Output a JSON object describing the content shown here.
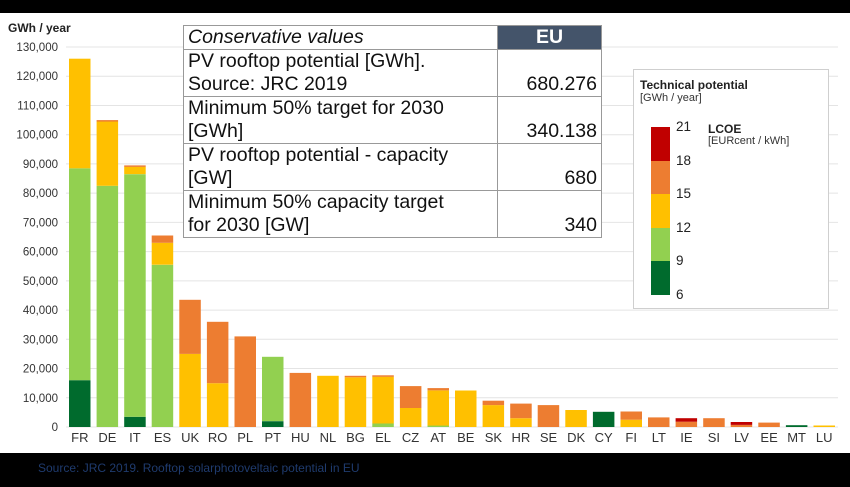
{
  "chart_data": {
    "type": "bar",
    "stacked": true,
    "ylabel": "GWh / year",
    "ylim": [
      0,
      130000
    ],
    "yticks": [
      "0",
      "10,000",
      "20,000",
      "30,000",
      "40,000",
      "50,000",
      "60,000",
      "70,000",
      "80,000",
      "90,000",
      "100,000",
      "110,000",
      "120,000",
      "130,000"
    ],
    "ytick_values": [
      0,
      10000,
      20000,
      30000,
      40000,
      50000,
      60000,
      70000,
      80000,
      90000,
      100000,
      110000,
      120000,
      130000
    ],
    "grid": true,
    "categories": [
      "FR",
      "DE",
      "IT",
      "ES",
      "UK",
      "RO",
      "PL",
      "PT",
      "HU",
      "NL",
      "BG",
      "EL",
      "CZ",
      "AT",
      "BE",
      "SK",
      "HR",
      "SE",
      "DK",
      "CY",
      "FI",
      "LT",
      "IE",
      "SI",
      "LV",
      "EE",
      "MT",
      "LU"
    ],
    "series": [
      {
        "color": "#006b2d",
        "values": [
          16000,
          0,
          3500,
          0,
          0,
          0,
          0,
          2000,
          0,
          0,
          0,
          0,
          0,
          0,
          0,
          0,
          0,
          0,
          0,
          5200,
          0,
          0,
          0,
          0,
          0,
          0,
          600,
          0
        ]
      },
      {
        "color": "#92d050",
        "values": [
          72500,
          82500,
          83000,
          55500,
          0,
          0,
          0,
          22000,
          0,
          0,
          0,
          1200,
          0,
          500,
          0,
          0,
          0,
          0,
          0,
          0,
          0,
          0,
          0,
          0,
          0,
          0,
          0,
          0
        ]
      },
      {
        "color": "#ffc000",
        "values": [
          37500,
          22000,
          2500,
          7500,
          25000,
          15000,
          0,
          0,
          0,
          17500,
          17000,
          16000,
          6500,
          12000,
          12500,
          7500,
          3000,
          0,
          5800,
          0,
          2500,
          0,
          0,
          0,
          0,
          0,
          0,
          500
        ]
      },
      {
        "color": "#ed7d31",
        "values": [
          0,
          500,
          500,
          2500,
          18500,
          21000,
          31000,
          0,
          18500,
          0,
          500,
          500,
          7500,
          800,
          0,
          1500,
          5000,
          7500,
          0,
          0,
          2800,
          3300,
          1800,
          3000,
          700,
          1500,
          0,
          0
        ]
      },
      {
        "color": "#c00000",
        "values": [
          0,
          0,
          0,
          0,
          0,
          0,
          0,
          0,
          0,
          0,
          0,
          0,
          0,
          0,
          0,
          0,
          0,
          0,
          0,
          0,
          0,
          0,
          1200,
          0,
          1000,
          0,
          0,
          0
        ]
      }
    ]
  },
  "info_table": {
    "header_label": "Conservative values",
    "header_region": "EU",
    "rows": [
      {
        "label_line1": "PV rooftop potential [GWh].",
        "label_line2": "Source: JRC 2019",
        "value": "680.276"
      },
      {
        "label_line1": "Minimum 50% target for 2030",
        "label_line2": "[GWh]",
        "value": "340.138"
      },
      {
        "label_line1": "PV rooftop potential - capacity",
        "label_line2": "[GW]",
        "value": "680"
      },
      {
        "label_line1": "Minimum 50% capacity target",
        "label_line2": "for 2030 [GW]",
        "value": "340"
      }
    ]
  },
  "legend": {
    "title": "Technical potential",
    "subtitle": "[GWh / year]",
    "lcoe_title": "LCOE",
    "lcoe_subtitle": "[EURcent / kWh]",
    "bands": [
      {
        "color": "#c00000",
        "from": 18,
        "to": 21
      },
      {
        "color": "#ed7d31",
        "from": 15,
        "to": 18
      },
      {
        "color": "#ffc000",
        "from": 12,
        "to": 15
      },
      {
        "color": "#92d050",
        "from": 9,
        "to": 12
      },
      {
        "color": "#006b2d",
        "from": 6,
        "to": 9
      }
    ],
    "labels": [
      "21",
      "18",
      "15",
      "12",
      "9",
      "6"
    ]
  },
  "caption": "Source: JRC 2019. Rooftop solarphotoveltaic potential in EU"
}
